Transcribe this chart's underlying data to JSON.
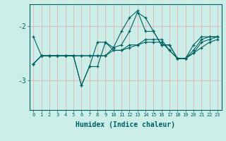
{
  "title": "",
  "xlabel": "Humidex (Indice chaleur)",
  "bg_color": "#cceee8",
  "grid_color": "#e8a0a0",
  "line_color": "#006060",
  "xlim": [
    -0.5,
    23.5
  ],
  "ylim": [
    -3.55,
    -1.6
  ],
  "yticks": [
    -3,
    -2
  ],
  "xticks": [
    0,
    1,
    2,
    3,
    4,
    5,
    6,
    7,
    8,
    9,
    10,
    11,
    12,
    13,
    14,
    15,
    16,
    17,
    18,
    19,
    20,
    21,
    22,
    23
  ],
  "series": [
    {
      "x": [
        0,
        1,
        2,
        3,
        4,
        5,
        6,
        7,
        8,
        9,
        10,
        11,
        12,
        13,
        14,
        15,
        16,
        17,
        18,
        19,
        20,
        21,
        22,
        23
      ],
      "y": [
        -2.7,
        -2.55,
        -2.55,
        -2.55,
        -2.55,
        -2.55,
        -3.1,
        -2.75,
        -2.75,
        -2.3,
        -2.45,
        -2.45,
        -2.35,
        -2.35,
        -2.25,
        -2.25,
        -2.25,
        -2.45,
        -2.6,
        -2.6,
        -2.5,
        -2.3,
        -2.25,
        -2.2
      ]
    },
    {
      "x": [
        0,
        1,
        2,
        3,
        4,
        5,
        6,
        7,
        8,
        9,
        10,
        11,
        12,
        13,
        14,
        15,
        16,
        17,
        18,
        19,
        20,
        21,
        22,
        23
      ],
      "y": [
        -2.7,
        -2.55,
        -2.55,
        -2.55,
        -2.55,
        -2.55,
        -2.55,
        -2.55,
        -2.55,
        -2.55,
        -2.45,
        -2.45,
        -2.4,
        -2.35,
        -2.3,
        -2.3,
        -2.3,
        -2.45,
        -2.6,
        -2.6,
        -2.5,
        -2.4,
        -2.3,
        -2.25
      ]
    },
    {
      "x": [
        0,
        1,
        2,
        3,
        4,
        5,
        6,
        7,
        8,
        9,
        10,
        11,
        12,
        13,
        14,
        15,
        16,
        17,
        18,
        19,
        20,
        21,
        22,
        23
      ],
      "y": [
        -2.2,
        -2.55,
        -2.55,
        -2.55,
        -2.55,
        -2.55,
        -3.1,
        -2.75,
        -2.3,
        -2.3,
        -2.4,
        -2.1,
        -1.85,
        -1.72,
        -2.1,
        -2.1,
        -2.35,
        -2.35,
        -2.6,
        -2.6,
        -2.35,
        -2.2,
        -2.2,
        -2.2
      ]
    },
    {
      "x": [
        0,
        1,
        2,
        3,
        4,
        5,
        6,
        7,
        8,
        9,
        10,
        11,
        12,
        13,
        14,
        15,
        16,
        17,
        18,
        19,
        20,
        21,
        22,
        23
      ],
      "y": [
        -2.7,
        -2.55,
        -2.55,
        -2.55,
        -2.55,
        -2.55,
        -2.55,
        -2.55,
        -2.55,
        -2.55,
        -2.4,
        -2.35,
        -2.1,
        -1.75,
        -1.85,
        -2.1,
        -2.35,
        -2.35,
        -2.6,
        -2.6,
        -2.45,
        -2.25,
        -2.2,
        -2.2
      ]
    }
  ]
}
